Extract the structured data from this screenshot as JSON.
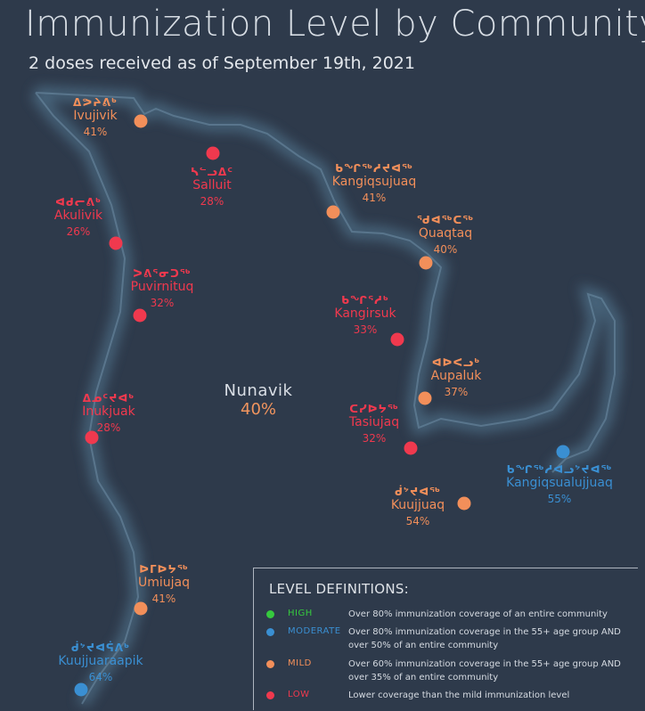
{
  "title": "Immunization Level by Community",
  "subtitle": "2 doses received as of September 19th, 2021",
  "region": {
    "name": "Nunavik",
    "pct": "40%"
  },
  "colors": {
    "high": "#36c93e",
    "moderate": "#3a8fd2",
    "mild": "#f28f5a",
    "low": "#f0394e",
    "land": "#2e3a4b",
    "water": "#3d5469"
  },
  "communities": [
    {
      "syllabics": "ᐃᕗᔨᕕᒃ",
      "name": "Ivujivik",
      "pct": "41%",
      "level": "mild"
    },
    {
      "syllabics": "ᓴᓪᓗᐃᑦ",
      "name": "Salluit",
      "pct": "28%",
      "level": "low"
    },
    {
      "syllabics": "ᑲᖏᖅᓱᔪᐊᖅ",
      "name": "Kangiqsujuaq",
      "pct": "41%",
      "level": "mild"
    },
    {
      "syllabics": "ᐊᑯᓕᕕᒃ",
      "name": "Akulivik",
      "pct": "26%",
      "level": "low"
    },
    {
      "syllabics": "ᖁᐊᖅᑕᖅ",
      "name": "Quaqtaq",
      "pct": "40%",
      "level": "mild"
    },
    {
      "syllabics": "ᐳᕕᕐᓂᑐᖅ",
      "name": "Puvirnituq",
      "pct": "32%",
      "level": "low"
    },
    {
      "syllabics": "ᑲᖏᕐᓱᒃ",
      "name": "Kangirsuk",
      "pct": "33%",
      "level": "low"
    },
    {
      "syllabics": "ᐊᐅᐸᓗᒃ",
      "name": "Aupaluk",
      "pct": "37%",
      "level": "mild"
    },
    {
      "syllabics": "ᐃᓄᑦᔪᐊᒃ",
      "name": "Inukjuak",
      "pct": "28%",
      "level": "low"
    },
    {
      "syllabics": "ᑕᓯᐅᔭᖅ",
      "name": "Tasiujaq",
      "pct": "32%",
      "level": "low"
    },
    {
      "syllabics": "ᑲᖏᖅᓱᐊᓗᔾᔪᐊᖅ",
      "name": "Kangiqsualujjuaq",
      "pct": "55%",
      "level": "moderate"
    },
    {
      "syllabics": "ᑰᔾᔪᐊᖅ",
      "name": "Kuujjuaq",
      "pct": "54%",
      "level": "mild"
    },
    {
      "syllabics": "ᐅᒥᐅᔭᖅ",
      "name": "Umiujaq",
      "pct": "41%",
      "level": "mild"
    },
    {
      "syllabics": "ᑰᔾᔪᐊᕌᐱᒃ",
      "name": "Kuujjuaraapik",
      "pct": "64%",
      "level": "moderate"
    }
  ],
  "legend": {
    "title": "LEVEL DEFINITIONS:",
    "items": [
      {
        "level": "HIGH",
        "key": "high",
        "desc": "Over 80% immunization coverage of an entire community"
      },
      {
        "level": "MODERATE",
        "key": "moderate",
        "desc": "Over 80% immunization coverage in the 55+ age group AND over 50% of an entire community"
      },
      {
        "level": "MILD",
        "key": "mild",
        "desc": "Over 60% immunization coverage in the 55+ age group AND over 35% of an entire community"
      },
      {
        "level": "LOW",
        "key": "low",
        "desc": "Lower coverage than the mild immunization level"
      }
    ]
  }
}
